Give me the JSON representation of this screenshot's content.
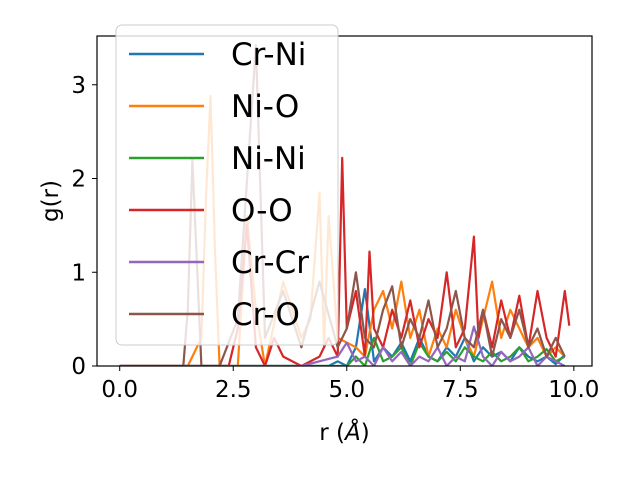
{
  "chart_data": {
    "type": "line",
    "xlabel": "r (",
    "xlabel_unit": "Å",
    "xlabel_close": ")",
    "ylabel": "g(r)",
    "xlim": [
      -0.5,
      10.4
    ],
    "ylim": [
      0,
      3.52
    ],
    "xticks": [
      0.0,
      2.5,
      5.0,
      7.5,
      10.0
    ],
    "xtick_labels": [
      "0.0",
      "2.5",
      "5.0",
      "7.5",
      "10.0"
    ],
    "yticks": [
      0,
      1,
      2,
      3
    ],
    "ytick_labels": [
      "0",
      "1",
      "2",
      "3"
    ],
    "grid": false,
    "legend_position": "top-left",
    "series": [
      {
        "name": "Cr-Ni",
        "color": "#1f77b4",
        "x": [
          0.0,
          1.0,
          2.0,
          3.0,
          4.0,
          4.6,
          4.8,
          5.0,
          5.2,
          5.4,
          5.6,
          5.8,
          6.0,
          6.2,
          6.4,
          6.6,
          6.8,
          7.0,
          7.2,
          7.4,
          7.6,
          7.8,
          8.0,
          8.2,
          8.4,
          8.6,
          8.8,
          9.0,
          9.2,
          9.4,
          9.6,
          9.8
        ],
        "y": [
          0,
          0,
          0,
          0,
          0,
          0,
          0.05,
          0,
          0.2,
          0.82,
          0.05,
          0.2,
          0.1,
          0.25,
          0.05,
          0.3,
          0.1,
          0.05,
          0.2,
          0.1,
          0.3,
          0.05,
          0.2,
          0.1,
          0.15,
          0.05,
          0.2,
          0.1,
          0.05,
          0.1,
          0.02,
          0.12
        ]
      },
      {
        "name": "Ni-O",
        "color": "#ff7f0e",
        "x": [
          0.0,
          1.5,
          1.8,
          1.9,
          2.0,
          2.1,
          2.2,
          2.6,
          2.8,
          3.0,
          3.2,
          3.6,
          4.0,
          4.2,
          4.4,
          4.5,
          4.6,
          4.8,
          5.2,
          5.4,
          5.6,
          5.8,
          6.0,
          6.2,
          6.4,
          6.6,
          6.8,
          7.0,
          7.2,
          7.4,
          7.6,
          7.8,
          8.0,
          8.2,
          8.4,
          8.6,
          8.8,
          9.0,
          9.2,
          9.4,
          9.6,
          9.8
        ],
        "y": [
          0,
          0,
          0.3,
          1.8,
          2.88,
          1.2,
          0,
          0,
          1.6,
          0.6,
          0,
          0.9,
          0.3,
          0.5,
          1.85,
          0.2,
          1.6,
          0.3,
          0.2,
          0.1,
          0.6,
          0.8,
          0.4,
          0.9,
          0.3,
          0.6,
          0.1,
          0.4,
          0.2,
          0.6,
          0.3,
          0.1,
          0.5,
          0.9,
          0.3,
          0.6,
          0.4,
          0.2,
          0.3,
          0.1,
          0.2,
          0.1
        ]
      },
      {
        "name": "Ni-Ni",
        "color": "#2ca02c",
        "x": [
          0.0,
          2.0,
          4.0,
          5.0,
          5.2,
          5.4,
          5.6,
          5.8,
          6.0,
          6.2,
          6.4,
          6.6,
          6.8,
          7.0,
          7.2,
          7.4,
          7.6,
          7.8,
          8.0,
          8.2,
          8.4,
          8.6,
          8.8,
          9.0,
          9.2,
          9.4,
          9.6,
          9.8
        ],
        "y": [
          0,
          0,
          0,
          0,
          0.1,
          0,
          0.3,
          0.05,
          0.1,
          0.2,
          0,
          0.25,
          0.1,
          0.05,
          0.15,
          0.05,
          0.2,
          0.1,
          0.05,
          0.15,
          0.05,
          0.1,
          0.2,
          0.05,
          0.1,
          0.18,
          0.05,
          0.1
        ]
      },
      {
        "name": "O-O",
        "color": "#d62728",
        "x": [
          0.0,
          2.0,
          2.4,
          2.6,
          2.8,
          3.0,
          3.2,
          3.4,
          3.6,
          4.0,
          4.4,
          4.6,
          4.8,
          4.9,
          5.0,
          5.2,
          5.4,
          5.5,
          5.6,
          5.8,
          6.0,
          6.2,
          6.4,
          6.6,
          6.8,
          7.0,
          7.2,
          7.4,
          7.6,
          7.8,
          7.9,
          8.0,
          8.2,
          8.4,
          8.6,
          8.8,
          9.0,
          9.2,
          9.4,
          9.6,
          9.8,
          9.9
        ],
        "y": [
          0,
          0,
          0,
          0.4,
          1.5,
          0.2,
          0,
          0.3,
          0.1,
          0,
          0.1,
          0.3,
          0.1,
          2.22,
          0.4,
          0.8,
          0.1,
          1.22,
          0.4,
          0.2,
          0.6,
          0.3,
          0.7,
          0.2,
          0.5,
          0.3,
          1.0,
          0.2,
          0.4,
          1.38,
          0.3,
          0.6,
          0.2,
          0.7,
          0.3,
          0.75,
          0.2,
          0.8,
          0.3,
          0.1,
          0.8,
          0.43
        ]
      },
      {
        "name": "Cr-Cr",
        "color": "#9467bd",
        "x": [
          0.0,
          2.0,
          4.0,
          4.8,
          5.0,
          5.2,
          5.4,
          5.6,
          5.8,
          6.0,
          6.2,
          6.4,
          6.6,
          6.8,
          7.0,
          7.2,
          7.4,
          7.6,
          7.8,
          8.0,
          8.2,
          8.4,
          8.6,
          8.8,
          9.0,
          9.2,
          9.4,
          9.6,
          9.8
        ],
        "y": [
          0,
          0,
          0,
          0.1,
          0.25,
          0.05,
          0.1,
          0,
          0.2,
          0.05,
          0.15,
          0,
          0.1,
          0.05,
          0.2,
          0,
          0.1,
          0.05,
          0.42,
          0.1,
          0,
          0.15,
          0.05,
          0.1,
          0.2,
          0,
          0.1,
          0.05,
          0
        ]
      },
      {
        "name": "Cr-O",
        "color": "#8c564b",
        "x": [
          0.0,
          1.4,
          1.5,
          1.6,
          1.7,
          1.8,
          2.2,
          2.6,
          3.0,
          3.2,
          3.6,
          4.0,
          4.4,
          4.8,
          5.0,
          5.2,
          5.4,
          5.6,
          5.8,
          6.0,
          6.2,
          6.4,
          6.6,
          6.8,
          7.0,
          7.2,
          7.4,
          7.6,
          7.8,
          8.0,
          8.2,
          8.4,
          8.6,
          8.8,
          9.0,
          9.2,
          9.4,
          9.6,
          9.8
        ],
        "y": [
          0,
          0,
          0.6,
          2.2,
          1.1,
          0,
          0,
          0.5,
          3.42,
          0.3,
          0.8,
          0.2,
          0.9,
          0.2,
          0.4,
          1.0,
          0.3,
          0.2,
          0.6,
          0.85,
          0.2,
          0.5,
          0.3,
          0.7,
          0.2,
          0.4,
          0.8,
          0.3,
          0.2,
          0.6,
          0.1,
          0.5,
          0.3,
          0.6,
          0.2,
          0.4,
          0.1,
          0.3,
          0.1
        ]
      }
    ]
  }
}
